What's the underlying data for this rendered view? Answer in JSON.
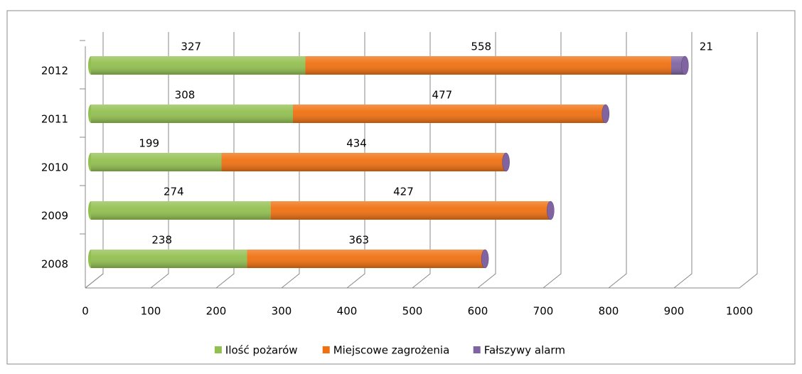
{
  "chart_data": {
    "type": "bar",
    "orientation": "horizontal",
    "stacked": true,
    "categories": [
      "2008",
      "2009",
      "2010",
      "2011",
      "2012"
    ],
    "series": [
      {
        "name": "Ilość pożarów",
        "color": "#92c050",
        "values": [
          238,
          274,
          199,
          308,
          327
        ]
      },
      {
        "name": "Miejscowe zagrożenia",
        "color": "#f07010",
        "values": [
          363,
          427,
          434,
          477,
          558
        ]
      },
      {
        "name": "Fałszywy alarm",
        "color": "#8064a2",
        "values": [
          null,
          null,
          null,
          null,
          21
        ]
      }
    ],
    "xlim": [
      0,
      1000
    ],
    "xticks": [
      0,
      100,
      200,
      300,
      400,
      500,
      600,
      700,
      800,
      900,
      1000
    ],
    "grid": true,
    "legend": "bottom"
  }
}
